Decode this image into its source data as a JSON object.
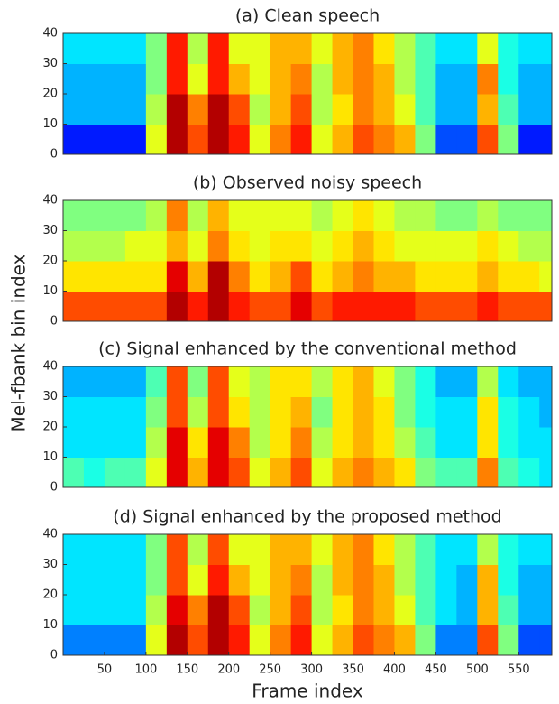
{
  "chart_data": [
    {
      "type": "heatmap",
      "title": "(a) Clean speech",
      "ylabel": "Mel-fbank bin index",
      "colormap": "jet",
      "xlim": [
        0,
        590
      ],
      "ylim": [
        0,
        40
      ],
      "yticks": [
        0,
        10,
        20,
        30,
        40
      ],
      "xbins": [
        0,
        25,
        50,
        75,
        100,
        125,
        150,
        175,
        200,
        225,
        250,
        275,
        300,
        325,
        350,
        375,
        400,
        425,
        450,
        475,
        500,
        525,
        550,
        575,
        590
      ],
      "ybins": [
        0,
        10,
        20,
        30,
        40
      ],
      "values": [
        [
          0.15,
          0.15,
          0.15,
          0.15,
          0.6,
          0.95,
          0.8,
          0.95,
          0.85,
          0.6,
          0.75,
          0.85,
          0.6,
          0.7,
          0.8,
          0.75,
          0.7,
          0.5,
          0.2,
          0.2,
          0.8,
          0.5,
          0.15,
          0.15
        ],
        [
          0.3,
          0.3,
          0.3,
          0.3,
          0.55,
          0.95,
          0.75,
          0.95,
          0.8,
          0.55,
          0.7,
          0.8,
          0.55,
          0.65,
          0.75,
          0.7,
          0.6,
          0.45,
          0.3,
          0.3,
          0.7,
          0.45,
          0.3,
          0.3
        ],
        [
          0.3,
          0.3,
          0.3,
          0.3,
          0.5,
          0.85,
          0.6,
          0.85,
          0.7,
          0.6,
          0.7,
          0.75,
          0.55,
          0.7,
          0.75,
          0.7,
          0.55,
          0.45,
          0.3,
          0.3,
          0.75,
          0.4,
          0.3,
          0.3
        ],
        [
          0.35,
          0.35,
          0.35,
          0.35,
          0.5,
          0.85,
          0.55,
          0.85,
          0.6,
          0.6,
          0.7,
          0.7,
          0.6,
          0.7,
          0.75,
          0.65,
          0.55,
          0.45,
          0.35,
          0.35,
          0.6,
          0.4,
          0.35,
          0.35
        ]
      ]
    },
    {
      "type": "heatmap",
      "title": "(b) Observed noisy speech",
      "colormap": "jet",
      "xlim": [
        0,
        590
      ],
      "ylim": [
        0,
        40
      ],
      "yticks": [
        0,
        10,
        20,
        30,
        40
      ],
      "xbins": [
        0,
        25,
        50,
        75,
        100,
        125,
        150,
        175,
        200,
        225,
        250,
        275,
        300,
        325,
        350,
        375,
        400,
        425,
        450,
        475,
        500,
        525,
        550,
        575,
        590
      ],
      "ybins": [
        0,
        10,
        20,
        30,
        40
      ],
      "values": [
        [
          0.8,
          0.8,
          0.8,
          0.8,
          0.8,
          0.95,
          0.85,
          0.95,
          0.85,
          0.8,
          0.8,
          0.9,
          0.8,
          0.85,
          0.85,
          0.85,
          0.85,
          0.8,
          0.8,
          0.8,
          0.85,
          0.8,
          0.8,
          0.8
        ],
        [
          0.65,
          0.65,
          0.65,
          0.65,
          0.65,
          0.9,
          0.7,
          0.95,
          0.75,
          0.65,
          0.7,
          0.8,
          0.65,
          0.7,
          0.75,
          0.7,
          0.7,
          0.65,
          0.65,
          0.65,
          0.7,
          0.65,
          0.65,
          0.6
        ],
        [
          0.55,
          0.55,
          0.55,
          0.6,
          0.6,
          0.7,
          0.6,
          0.75,
          0.65,
          0.6,
          0.65,
          0.65,
          0.6,
          0.65,
          0.7,
          0.65,
          0.6,
          0.6,
          0.6,
          0.6,
          0.65,
          0.6,
          0.55,
          0.55
        ],
        [
          0.5,
          0.5,
          0.5,
          0.5,
          0.55,
          0.75,
          0.55,
          0.7,
          0.6,
          0.6,
          0.6,
          0.6,
          0.55,
          0.6,
          0.65,
          0.6,
          0.55,
          0.55,
          0.5,
          0.5,
          0.55,
          0.5,
          0.5,
          0.5
        ]
      ]
    },
    {
      "type": "heatmap",
      "title": "(c) Signal enhanced by the conventional method",
      "colormap": "jet",
      "xlim": [
        0,
        590
      ],
      "ylim": [
        0,
        40
      ],
      "yticks": [
        0,
        10,
        20,
        30,
        40
      ],
      "xbins": [
        0,
        25,
        50,
        75,
        100,
        125,
        150,
        175,
        200,
        225,
        250,
        275,
        300,
        325,
        350,
        375,
        400,
        425,
        450,
        475,
        500,
        525,
        550,
        575,
        590
      ],
      "ybins": [
        0,
        10,
        20,
        30,
        40
      ],
      "values": [
        [
          0.45,
          0.4,
          0.45,
          0.45,
          0.6,
          0.9,
          0.7,
          0.9,
          0.8,
          0.6,
          0.7,
          0.8,
          0.6,
          0.7,
          0.75,
          0.7,
          0.65,
          0.5,
          0.45,
          0.45,
          0.75,
          0.45,
          0.4,
          0.35
        ],
        [
          0.35,
          0.35,
          0.35,
          0.35,
          0.55,
          0.9,
          0.65,
          0.9,
          0.75,
          0.55,
          0.65,
          0.75,
          0.55,
          0.65,
          0.7,
          0.65,
          0.55,
          0.45,
          0.35,
          0.35,
          0.65,
          0.4,
          0.35,
          0.35
        ],
        [
          0.35,
          0.35,
          0.35,
          0.35,
          0.5,
          0.8,
          0.55,
          0.8,
          0.65,
          0.55,
          0.65,
          0.7,
          0.5,
          0.65,
          0.7,
          0.65,
          0.5,
          0.4,
          0.35,
          0.35,
          0.65,
          0.4,
          0.35,
          0.3
        ],
        [
          0.3,
          0.3,
          0.3,
          0.3,
          0.45,
          0.8,
          0.5,
          0.8,
          0.6,
          0.55,
          0.65,
          0.65,
          0.55,
          0.65,
          0.7,
          0.6,
          0.5,
          0.4,
          0.3,
          0.3,
          0.55,
          0.35,
          0.3,
          0.3
        ]
      ]
    },
    {
      "type": "heatmap",
      "title": "(d) Signal enhanced by the proposed method",
      "xlabel": "Frame  index",
      "colormap": "jet",
      "xlim": [
        0,
        590
      ],
      "ylim": [
        0,
        40
      ],
      "yticks": [
        0,
        10,
        20,
        30,
        40
      ],
      "xticks": [
        50,
        100,
        150,
        200,
        250,
        300,
        350,
        400,
        450,
        500,
        550
      ],
      "xbins": [
        0,
        25,
        50,
        75,
        100,
        125,
        150,
        175,
        200,
        225,
        250,
        275,
        300,
        325,
        350,
        375,
        400,
        425,
        450,
        475,
        500,
        525,
        550,
        575,
        590
      ],
      "ybins": [
        0,
        10,
        20,
        30,
        40
      ],
      "values": [
        [
          0.25,
          0.25,
          0.25,
          0.25,
          0.6,
          0.95,
          0.8,
          0.95,
          0.85,
          0.6,
          0.75,
          0.85,
          0.6,
          0.7,
          0.8,
          0.75,
          0.7,
          0.5,
          0.25,
          0.25,
          0.8,
          0.5,
          0.2,
          0.2
        ],
        [
          0.35,
          0.35,
          0.35,
          0.35,
          0.55,
          0.9,
          0.75,
          0.95,
          0.8,
          0.55,
          0.7,
          0.8,
          0.55,
          0.65,
          0.75,
          0.7,
          0.6,
          0.45,
          0.35,
          0.3,
          0.7,
          0.45,
          0.3,
          0.3
        ],
        [
          0.35,
          0.35,
          0.35,
          0.35,
          0.5,
          0.8,
          0.6,
          0.85,
          0.7,
          0.6,
          0.7,
          0.75,
          0.55,
          0.7,
          0.75,
          0.7,
          0.55,
          0.45,
          0.35,
          0.3,
          0.7,
          0.4,
          0.3,
          0.3
        ],
        [
          0.35,
          0.35,
          0.35,
          0.35,
          0.5,
          0.8,
          0.55,
          0.8,
          0.6,
          0.6,
          0.7,
          0.7,
          0.6,
          0.7,
          0.75,
          0.65,
          0.55,
          0.45,
          0.35,
          0.35,
          0.55,
          0.4,
          0.35,
          0.35
        ]
      ]
    }
  ]
}
